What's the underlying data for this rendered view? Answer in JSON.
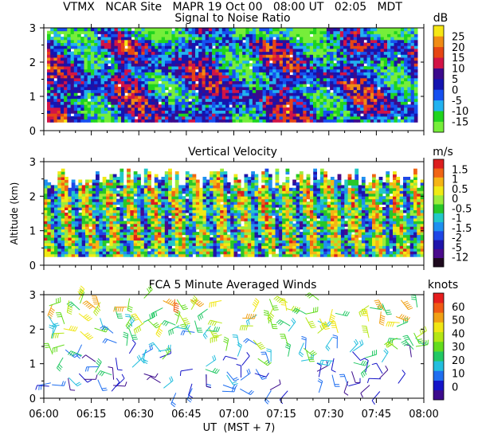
{
  "header": {
    "title_line": "VTMX   NCAR Site   MAPR 19 Oct 00   08:00 UT   02:05   MDT"
  },
  "x_axis": {
    "label": "UT  (MST + 7)",
    "range": [
      0,
      120
    ],
    "ticks": [
      {
        "v": 0,
        "label": "06:00"
      },
      {
        "v": 15,
        "label": "06:15"
      },
      {
        "v": 30,
        "label": "06:30"
      },
      {
        "v": 45,
        "label": "06:45"
      },
      {
        "v": 60,
        "label": "07:00"
      },
      {
        "v": 75,
        "label": "07:15"
      },
      {
        "v": 90,
        "label": "07:30"
      },
      {
        "v": 105,
        "label": "07:45"
      },
      {
        "v": 120,
        "label": "08:00"
      }
    ]
  },
  "shared_ylabel": "Altitude (km)",
  "chart_data": [
    {
      "type": "heatmap",
      "title": "Signal to Noise Ratio",
      "units": "dB",
      "ylim": [
        0,
        3
      ],
      "y_ticks": [
        "0",
        "1",
        "2",
        "3"
      ],
      "data_altitude_range_km": [
        0.25,
        3.0
      ],
      "data_time_range_min": [
        1,
        118
      ],
      "colorbar": {
        "colors": [
          "#76ee3a",
          "#1fd41f",
          "#22b2f0",
          "#1650f0",
          "#1414b0",
          "#3c0a8c",
          "#d21446",
          "#e64614",
          "#f08c14",
          "#f5e614"
        ],
        "ticks": [
          "-15",
          "-10",
          "-5",
          "0",
          "5",
          "10",
          "15",
          "20",
          "25"
        ]
      }
    },
    {
      "type": "heatmap",
      "title": "Vertical Velocity",
      "units": "m/s",
      "ylim": [
        0,
        3
      ],
      "y_ticks": [
        "0",
        "1",
        "2",
        "3"
      ],
      "data_altitude_range_km": [
        0.25,
        2.8
      ],
      "colorbar": {
        "colors": [
          "#1e0a1e",
          "#4a0a8c",
          "#1e14aa",
          "#1e46e6",
          "#1e90f0",
          "#22c8c8",
          "#28c828",
          "#9bec3c",
          "#f0ea14",
          "#f5b414",
          "#f06414",
          "#dc1e1e"
        ],
        "ticks": [
          "-12",
          "-5",
          "-2",
          "-1.5",
          "-1",
          "-0.5",
          "0",
          "0.5",
          "1",
          "1.5"
        ]
      }
    },
    {
      "type": "scatter",
      "title": "FCA 5 Minute Averaged Winds",
      "units": "knots",
      "ylim": [
        0,
        3
      ],
      "y_ticks": [
        "0",
        "1",
        "2",
        "3"
      ],
      "marker": "wind-barb",
      "barb_count": 200,
      "colorbar": {
        "colors": [
          "#3c0a8c",
          "#1414c8",
          "#1e6ef0",
          "#22bede",
          "#22c864",
          "#64dc1e",
          "#b4e614",
          "#f0e614",
          "#f0a014",
          "#f05a14",
          "#e61e1e"
        ],
        "ticks": [
          "0",
          "10",
          "20",
          "30",
          "40",
          "50",
          "60"
        ]
      }
    }
  ]
}
